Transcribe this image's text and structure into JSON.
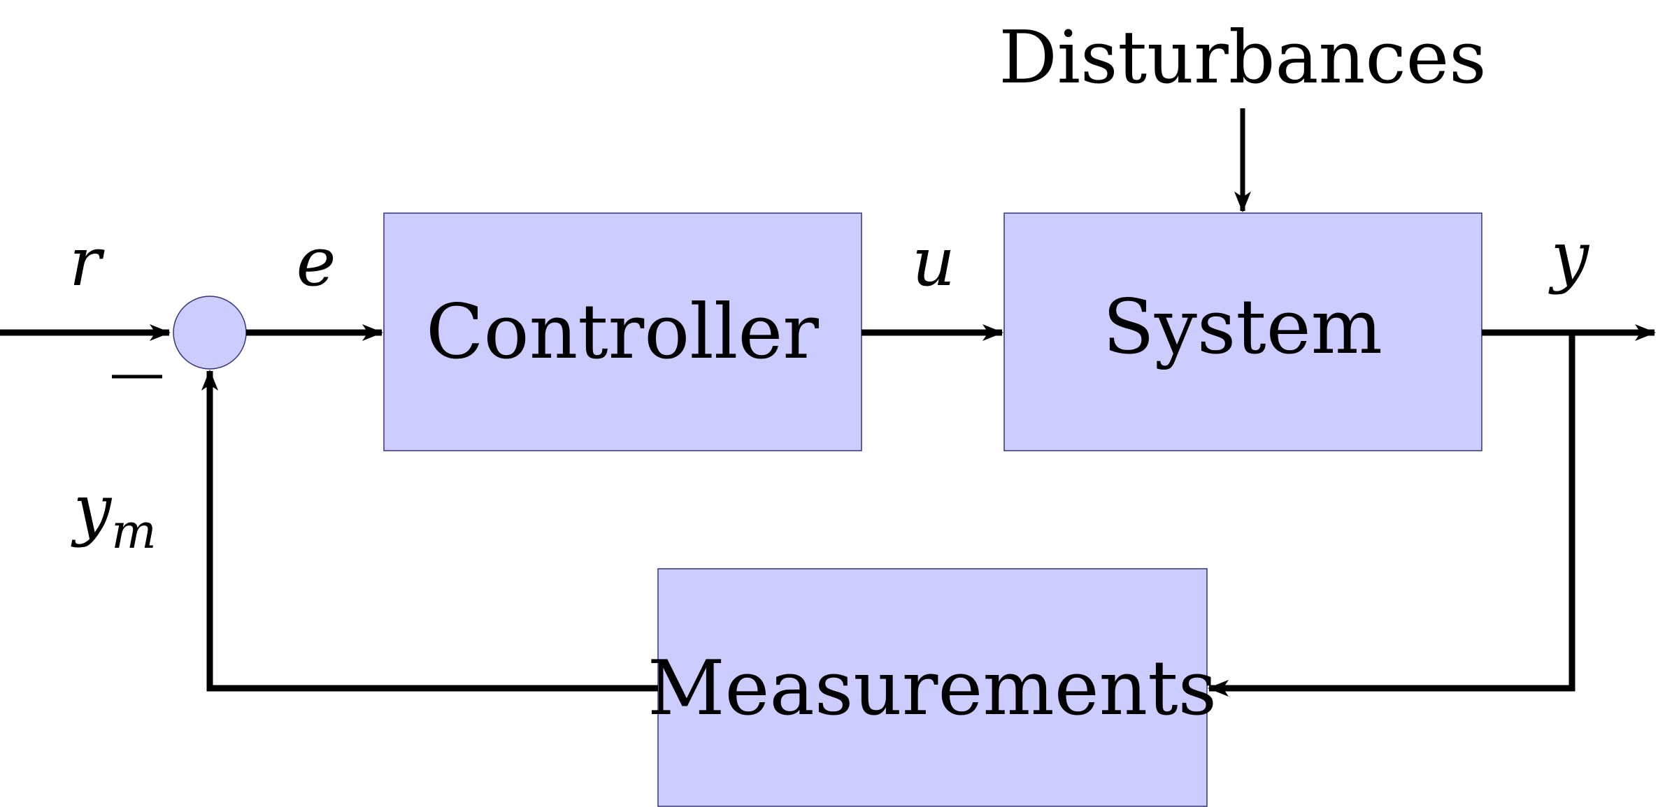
{
  "colors": {
    "block_fill": "#ccccff",
    "block_stroke": "#33337a",
    "wire": "#000000",
    "text": "#000000",
    "background": "#ffffff"
  },
  "blocks": {
    "controller": "Controller",
    "system": "System",
    "measurements": "Measurements"
  },
  "disturbances_label": "Disturbances",
  "signals": {
    "reference": "r",
    "error": "e",
    "control": "u",
    "output": "y",
    "measured": "y",
    "measured_subscript": "m"
  },
  "summing_junction": {
    "negative_sign": "−"
  }
}
